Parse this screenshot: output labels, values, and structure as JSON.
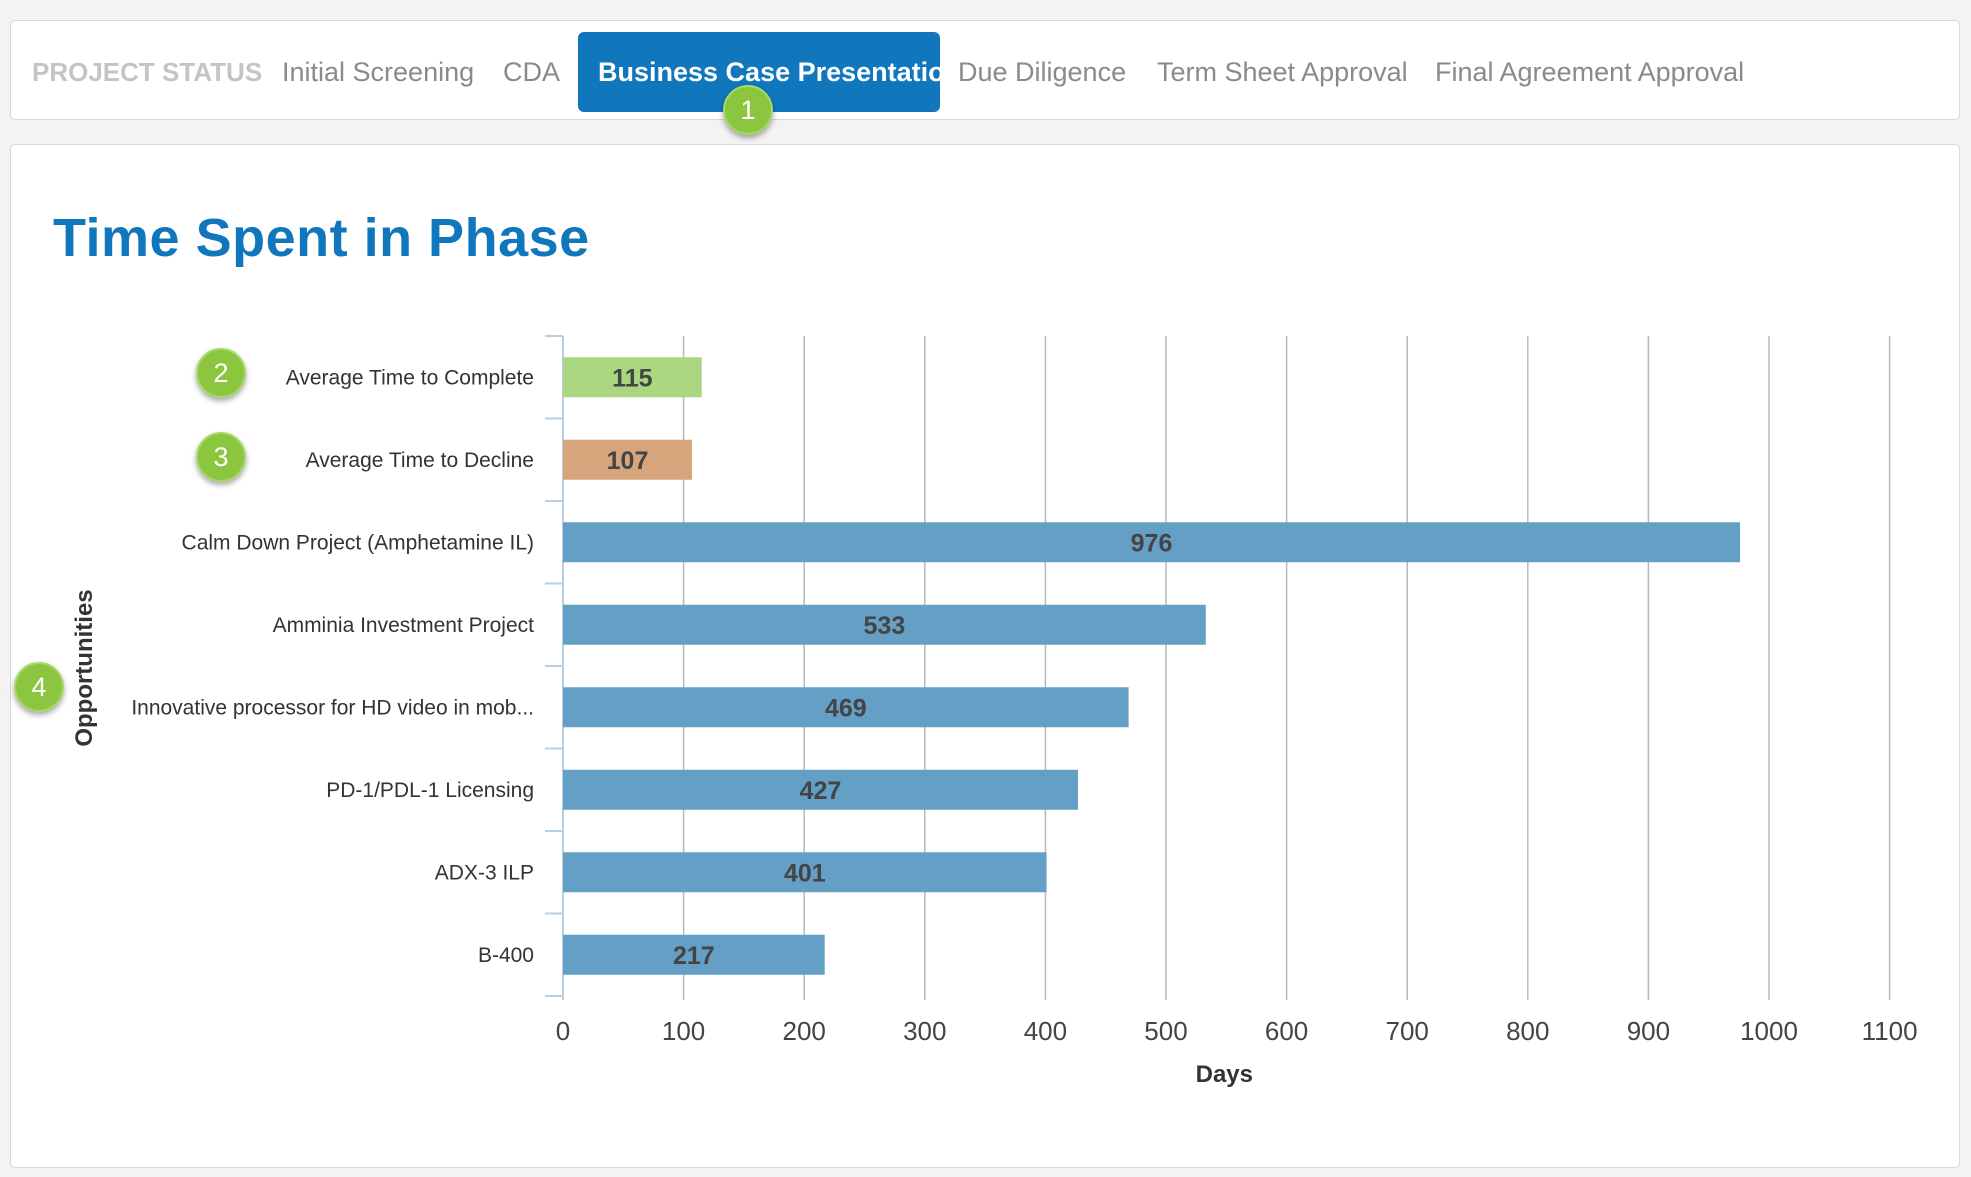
{
  "tabs": {
    "label": "PROJECT STATUS",
    "items": [
      {
        "label": "Initial Screening"
      },
      {
        "label": "CDA"
      },
      {
        "label": "Business Case Presentation",
        "active": true
      },
      {
        "label": "Due Diligence"
      },
      {
        "label": "Term Sheet Approval"
      },
      {
        "label": "Final Agreement Approval"
      }
    ]
  },
  "markers": [
    "1",
    "2",
    "3",
    "4"
  ],
  "page_title": "Time Spent in Phase",
  "colors": {
    "accent": "#1077bd",
    "complete_bar": "#a9d67f",
    "decline_bar": "#d6a57c",
    "project_bar": "#649fc6",
    "marker": "#8cc63f"
  },
  "chart_data": {
    "type": "bar",
    "orientation": "horizontal",
    "title": "",
    "xlabel": "Days",
    "ylabel": "Opportunities",
    "xlim": [
      0,
      1100
    ],
    "xticks": [
      0,
      100,
      200,
      300,
      400,
      500,
      600,
      700,
      800,
      900,
      1000,
      1100
    ],
    "grid": true,
    "categories": [
      "Average Time to Complete",
      "Average Time to Decline",
      "Calm Down Project (Amphetamine IL)",
      "Amminia Investment Project",
      "Innovative processor for HD video in mob...",
      "PD-1/PDL-1 Licensing",
      "ADX-3 ILP",
      "B-400"
    ],
    "values": [
      115,
      107,
      976,
      533,
      469,
      427,
      401,
      217
    ],
    "bar_colors": [
      "#a9d67f",
      "#d6a57c",
      "#649fc6",
      "#649fc6",
      "#649fc6",
      "#649fc6",
      "#649fc6",
      "#649fc6"
    ]
  }
}
